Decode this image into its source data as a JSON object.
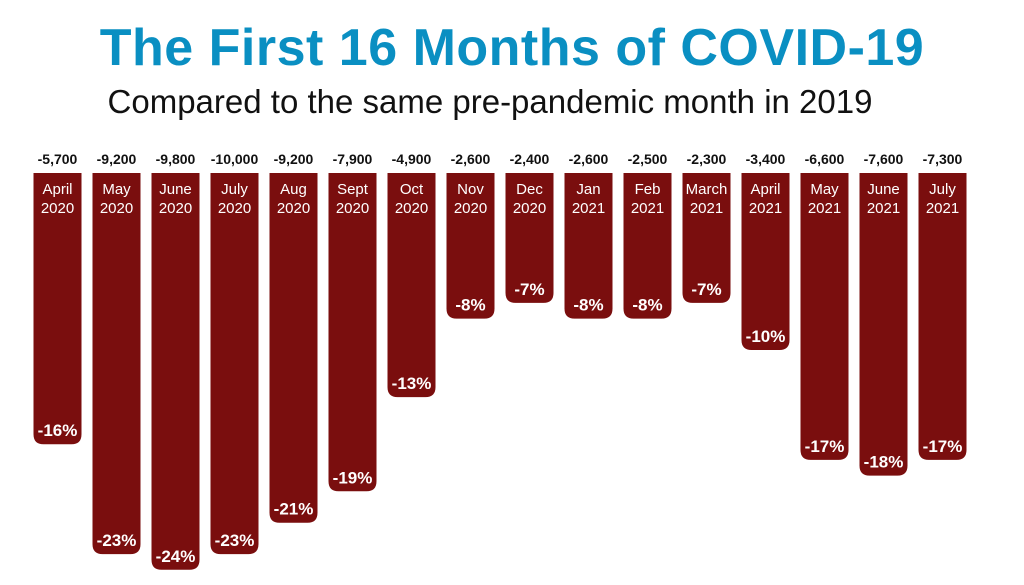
{
  "title": "The First 16 Months of COVID-19",
  "subtitle": "Compared to the same pre-pandemic month in 2019",
  "colors": {
    "title": "#0A8FC2",
    "bar": "#7A0E0E"
  },
  "chart_data": {
    "type": "bar",
    "orientation": "vertical-negative",
    "title": "The First 16 Months of COVID-19",
    "subtitle": "Compared to the same pre-pandemic month in 2019",
    "categories": [
      [
        "April",
        "2020"
      ],
      [
        "May",
        "2020"
      ],
      [
        "June",
        "2020"
      ],
      [
        "July",
        "2020"
      ],
      [
        "Aug",
        "2020"
      ],
      [
        "Sept",
        "2020"
      ],
      [
        "Oct",
        "2020"
      ],
      [
        "Nov",
        "2020"
      ],
      [
        "Dec",
        "2020"
      ],
      [
        "Jan",
        "2021"
      ],
      [
        "Feb",
        "2021"
      ],
      [
        "March",
        "2021"
      ],
      [
        "April",
        "2021"
      ],
      [
        "May",
        "2021"
      ],
      [
        "June",
        "2021"
      ],
      [
        "July",
        "2021"
      ]
    ],
    "change_labels": [
      "-5,700",
      "-9,200",
      "-9,800",
      "-10,000",
      "-9,200",
      "-7,900",
      "-4,900",
      "-2,600",
      "-2,400",
      "-2,600",
      "-2,500",
      "-2,300",
      "-3,400",
      "-6,600",
      "-7,600",
      "-7,300"
    ],
    "percent_labels": [
      "-16%",
      "-23%",
      "-24%",
      "-23%",
      "-21%",
      "-19%",
      "-13%",
      "-8%",
      "-7%",
      "-8%",
      "-8%",
      "-7%",
      "-10%",
      "-17%",
      "-18%",
      "-17%"
    ],
    "values": [
      -16,
      -23,
      -24,
      -23,
      -21,
      -19,
      -13,
      -8,
      -7,
      -8,
      -8,
      -7,
      -10,
      -17,
      -18,
      -17
    ],
    "ylim": [
      -24,
      0
    ],
    "grid": false,
    "legend": "none"
  }
}
